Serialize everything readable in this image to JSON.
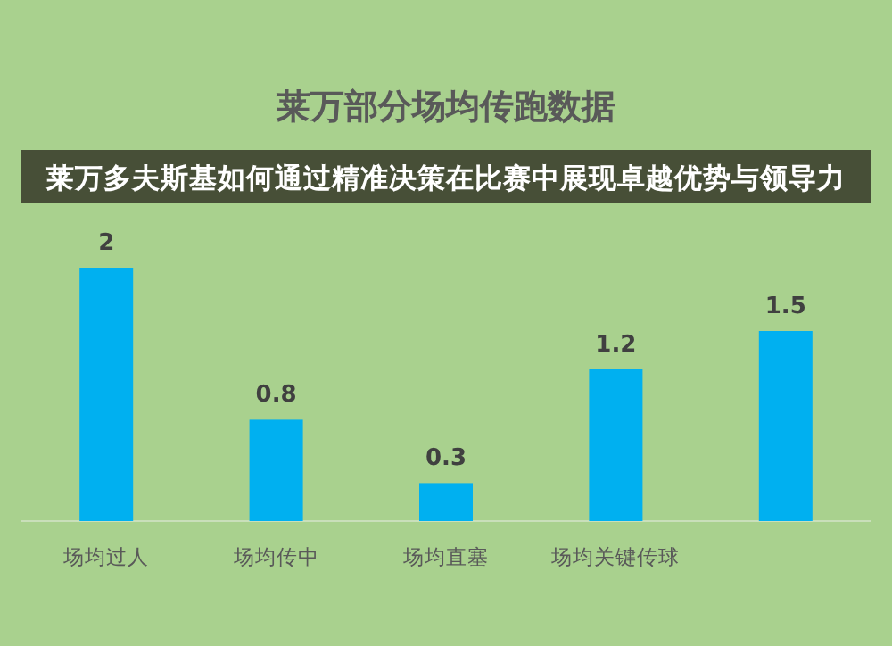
{
  "chart_data": {
    "type": "bar",
    "title": "莱万部分场均传跑数据",
    "subtitle": "莱万多夫斯基如何通过精准决策在比赛中展现卓越优势与领导力",
    "categories": [
      "场均过人",
      "场均传中",
      "场均直塞",
      "场均关键传球",
      null
    ],
    "values": [
      2,
      0.8,
      0.3,
      1.2,
      1.5
    ],
    "color": "#00b0f0",
    "data_labels": true
  }
}
